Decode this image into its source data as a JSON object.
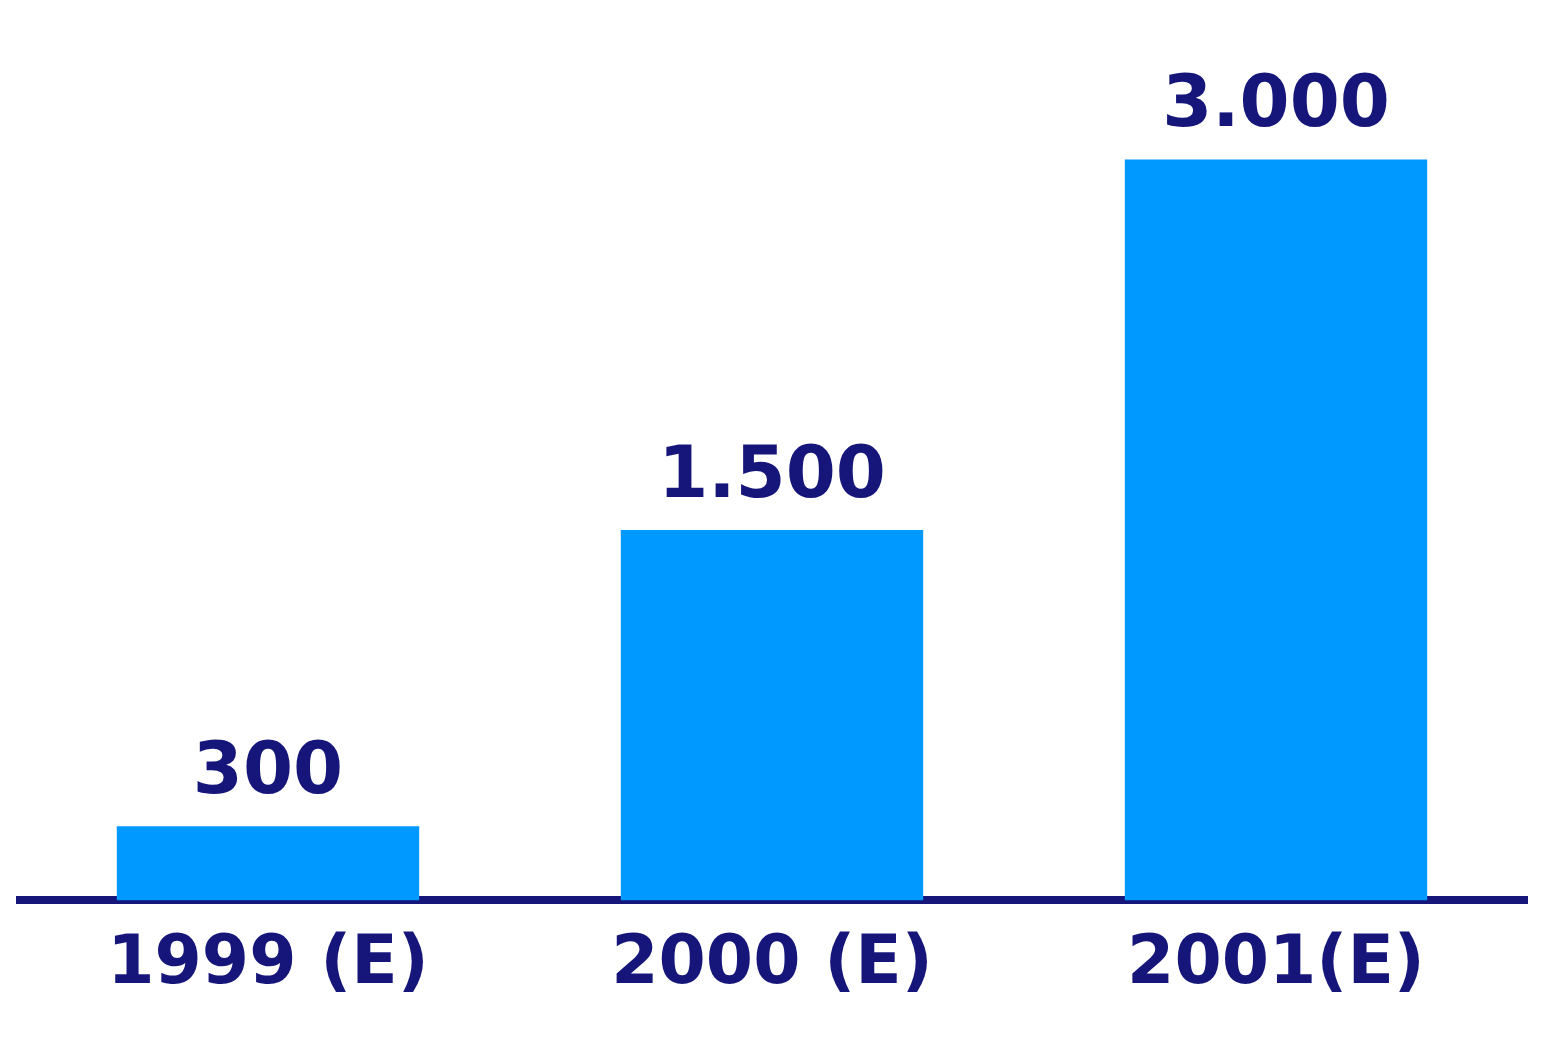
{
  "chart_data": {
    "type": "bar",
    "categories": [
      "1999 (E)",
      "2000 (E)",
      "2001(E)"
    ],
    "values": [
      300,
      1500,
      3000
    ],
    "value_labels": [
      "300",
      "1.500",
      "3.000"
    ],
    "color": "#0099ff",
    "grid": false,
    "legend": false
  }
}
